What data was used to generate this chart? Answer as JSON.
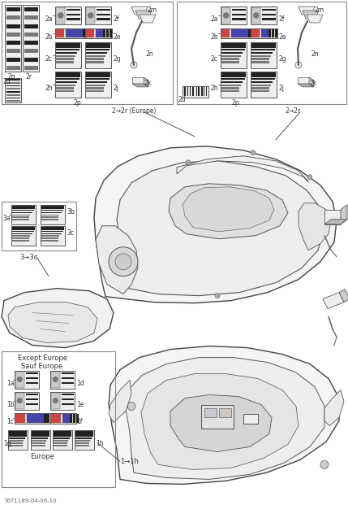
{
  "bg_color": "#ffffff",
  "border_color": "#555555",
  "label_color": "#333333",
  "box_edge": "#555555",
  "dark_fill": "#222222",
  "medium_fill": "#777777",
  "light_fill": "#eeeeee",
  "gray_fill": "#cccccc",
  "footer_text": "76T1189-04-06-10",
  "section1_header": "Except Europe\nSauf Europe",
  "section1_footer": "Europe",
  "section3_label": "3→3c",
  "section2_label_left": "2→2r (Europe)",
  "section2_label_right": "2→2r",
  "section1_label": "1→1h"
}
